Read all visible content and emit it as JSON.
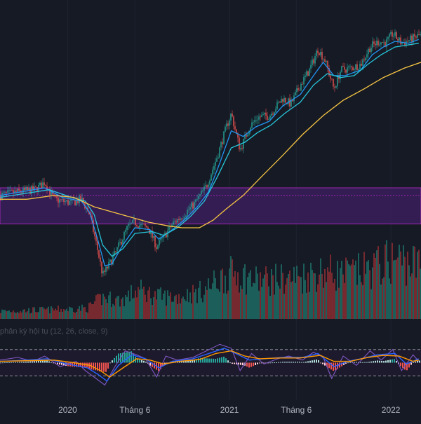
{
  "colors": {
    "background": "#161a25",
    "grid": "#1f2330",
    "candle_up": "#26a69a",
    "candle_down": "#ef5350",
    "ema_fast": "#2196f3",
    "ema_mid": "#26c6da",
    "sma_long": "#f5c443",
    "zone_fill": "#3a1f5c",
    "zone_border": "#9c27b0",
    "volume_up": "#1f6f67",
    "volume_down": "#8e2f33",
    "macd_line": "#2962ff",
    "signal_line": "#ff9800",
    "rsi_line": "#7e57c2",
    "hist_up_strong": "#26a69a",
    "hist_up_weak": "#b2dfdb",
    "hist_down_strong": "#ef5350",
    "hist_down_weak": "#ffcdd2",
    "axis_text": "#b2b5be",
    "indicator_text": "#4a4e59",
    "dashed_line": "#8a8d96"
  },
  "indicator_label": "phân kỳ hội tụ (12, 26, close, 9)",
  "chart_data": {
    "type": "candlestick",
    "x_axis": {
      "tick_labels": [
        "2020",
        "Tháng 6",
        "2021",
        "Tháng 6",
        "2022"
      ],
      "tick_dates": [
        "2020-01-01",
        "2020-06-01",
        "2021-01-01",
        "2021-06-01",
        "2022-01-01"
      ]
    },
    "x_range": [
      "2019-08-01",
      "2022-03-10"
    ],
    "price_range": [
      0.2,
      1.6
    ],
    "series": [
      {
        "name": "price",
        "points": [
          [
            "2019-08-01",
            0.72
          ],
          [
            "2019-09-15",
            0.74
          ],
          [
            "2019-10-20",
            0.75
          ],
          [
            "2019-11-10",
            0.79
          ],
          [
            "2019-12-01",
            0.7
          ],
          [
            "2019-12-20",
            0.69
          ],
          [
            "2020-01-10",
            0.68
          ],
          [
            "2020-02-01",
            0.7
          ],
          [
            "2020-02-20",
            0.62
          ],
          [
            "2020-03-10",
            0.42
          ],
          [
            "2020-03-20",
            0.3
          ],
          [
            "2020-04-05",
            0.36
          ],
          [
            "2020-04-25",
            0.45
          ],
          [
            "2020-05-15",
            0.55
          ],
          [
            "2020-06-01",
            0.58
          ],
          [
            "2020-06-15",
            0.56
          ],
          [
            "2020-07-01",
            0.55
          ],
          [
            "2020-07-20",
            0.45
          ],
          [
            "2020-08-05",
            0.5
          ],
          [
            "2020-08-25",
            0.57
          ],
          [
            "2020-09-20",
            0.62
          ],
          [
            "2020-10-15",
            0.68
          ],
          [
            "2020-11-10",
            0.77
          ],
          [
            "2020-12-05",
            0.93
          ],
          [
            "2020-12-25",
            1.08
          ],
          [
            "2021-01-05",
            1.15
          ],
          [
            "2021-01-25",
            0.96
          ],
          [
            "2021-02-15",
            1.08
          ],
          [
            "2021-03-05",
            1.13
          ],
          [
            "2021-04-01",
            1.14
          ],
          [
            "2021-05-01",
            1.23
          ],
          [
            "2021-05-20",
            1.2
          ],
          [
            "2021-06-10",
            1.3
          ],
          [
            "2021-07-01",
            1.38
          ],
          [
            "2021-07-20",
            1.49
          ],
          [
            "2021-08-05",
            1.43
          ],
          [
            "2021-08-25",
            1.28
          ],
          [
            "2021-09-10",
            1.38
          ],
          [
            "2021-10-05",
            1.39
          ],
          [
            "2021-10-25",
            1.41
          ],
          [
            "2021-11-15",
            1.5
          ],
          [
            "2021-12-05",
            1.53
          ],
          [
            "2021-12-20",
            1.52
          ],
          [
            "2022-01-05",
            1.57
          ],
          [
            "2022-01-25",
            1.52
          ],
          [
            "2022-02-15",
            1.54
          ],
          [
            "2022-03-05",
            1.56
          ]
        ]
      },
      {
        "name": "ema_fast",
        "points": [
          [
            "2019-08-01",
            0.72
          ],
          [
            "2019-11-10",
            0.76
          ],
          [
            "2019-12-20",
            0.71
          ],
          [
            "2020-02-01",
            0.69
          ],
          [
            "2020-02-20",
            0.63
          ],
          [
            "2020-03-10",
            0.48
          ],
          [
            "2020-03-25",
            0.35
          ],
          [
            "2020-04-10",
            0.36
          ],
          [
            "2020-05-05",
            0.46
          ],
          [
            "2020-06-01",
            0.55
          ],
          [
            "2020-07-05",
            0.54
          ],
          [
            "2020-07-25",
            0.49
          ],
          [
            "2020-08-25",
            0.54
          ],
          [
            "2020-09-25",
            0.6
          ],
          [
            "2020-10-20",
            0.66
          ],
          [
            "2020-11-15",
            0.74
          ],
          [
            "2020-12-10",
            0.89
          ],
          [
            "2021-01-05",
            1.06
          ],
          [
            "2021-02-01",
            1.03
          ],
          [
            "2021-03-01",
            1.08
          ],
          [
            "2021-04-01",
            1.11
          ],
          [
            "2021-05-01",
            1.19
          ],
          [
            "2021-06-10",
            1.25
          ],
          [
            "2021-07-10",
            1.35
          ],
          [
            "2021-08-01",
            1.42
          ],
          [
            "2021-08-25",
            1.35
          ],
          [
            "2021-09-20",
            1.35
          ],
          [
            "2021-10-25",
            1.38
          ],
          [
            "2021-11-20",
            1.46
          ],
          [
            "2021-12-15",
            1.5
          ],
          [
            "2022-01-10",
            1.53
          ],
          [
            "2022-02-10",
            1.52
          ],
          [
            "2022-03-05",
            1.54
          ]
        ]
      },
      {
        "name": "ema_mid",
        "points": [
          [
            "2019-08-01",
            0.71
          ],
          [
            "2019-11-20",
            0.75
          ],
          [
            "2020-01-10",
            0.71
          ],
          [
            "2020-02-10",
            0.69
          ],
          [
            "2020-03-01",
            0.62
          ],
          [
            "2020-03-20",
            0.46
          ],
          [
            "2020-04-10",
            0.4
          ],
          [
            "2020-05-05",
            0.44
          ],
          [
            "2020-06-01",
            0.52
          ],
          [
            "2020-07-10",
            0.53
          ],
          [
            "2020-08-05",
            0.51
          ],
          [
            "2020-09-05",
            0.55
          ],
          [
            "2020-10-05",
            0.61
          ],
          [
            "2020-11-05",
            0.69
          ],
          [
            "2020-12-05",
            0.82
          ],
          [
            "2021-01-05",
            0.97
          ],
          [
            "2021-02-05",
            1.0
          ],
          [
            "2021-03-05",
            1.05
          ],
          [
            "2021-04-05",
            1.09
          ],
          [
            "2021-05-05",
            1.15
          ],
          [
            "2021-06-10",
            1.21
          ],
          [
            "2021-07-10",
            1.3
          ],
          [
            "2021-08-10",
            1.36
          ],
          [
            "2021-09-10",
            1.34
          ],
          [
            "2021-10-10",
            1.35
          ],
          [
            "2021-11-10",
            1.41
          ],
          [
            "2021-12-10",
            1.46
          ],
          [
            "2022-01-10",
            1.5
          ],
          [
            "2022-03-05",
            1.52
          ]
        ]
      },
      {
        "name": "sma_long",
        "points": [
          [
            "2019-08-01",
            0.7
          ],
          [
            "2019-10-01",
            0.7
          ],
          [
            "2019-12-01",
            0.72
          ],
          [
            "2020-01-15",
            0.71
          ],
          [
            "2020-03-01",
            0.66
          ],
          [
            "2020-05-01",
            0.62
          ],
          [
            "2020-07-01",
            0.58
          ],
          [
            "2020-08-15",
            0.56
          ],
          [
            "2020-09-15",
            0.55
          ],
          [
            "2020-10-25",
            0.55
          ],
          [
            "2020-11-25",
            0.59
          ],
          [
            "2020-12-25",
            0.65
          ],
          [
            "2021-02-01",
            0.72
          ],
          [
            "2021-03-15",
            0.82
          ],
          [
            "2021-05-01",
            0.93
          ],
          [
            "2021-06-15",
            1.04
          ],
          [
            "2021-08-01",
            1.14
          ],
          [
            "2021-09-15",
            1.22
          ],
          [
            "2021-11-01",
            1.28
          ],
          [
            "2021-12-15",
            1.34
          ],
          [
            "2022-02-01",
            1.39
          ],
          [
            "2022-03-10",
            1.42
          ]
        ]
      }
    ],
    "zone": {
      "low": 0.57,
      "high": 0.76,
      "mid": 0.72
    },
    "volume": {
      "range": [
        0,
        100
      ],
      "points": [
        [
          "2019-08-01",
          10
        ],
        [
          "2019-12-01",
          12
        ],
        [
          "2020-02-15",
          14
        ],
        [
          "2020-03-20",
          28
        ],
        [
          "2020-05-01",
          24
        ],
        [
          "2020-06-10",
          38
        ],
        [
          "2020-07-15",
          30
        ],
        [
          "2020-09-01",
          28
        ],
        [
          "2020-11-01",
          36
        ],
        [
          "2020-12-20",
          55
        ],
        [
          "2021-01-15",
          60
        ],
        [
          "2021-03-01",
          50
        ],
        [
          "2021-05-01",
          52
        ],
        [
          "2021-06-15",
          55
        ],
        [
          "2021-08-01",
          62
        ],
        [
          "2021-09-15",
          58
        ],
        [
          "2021-11-01",
          62
        ],
        [
          "2021-12-15",
          72
        ],
        [
          "2022-01-15",
          78
        ],
        [
          "2022-03-05",
          70
        ]
      ]
    },
    "macd": {
      "range": [
        -1,
        1
      ],
      "levels": [
        0.5,
        -0.5
      ],
      "series": [
        {
          "name": "rsi",
          "points": [
            [
              "2019-08-01",
              0.1
            ],
            [
              "2019-09-10",
              0.2
            ],
            [
              "2019-10-15",
              0.05
            ],
            [
              "2019-11-10",
              0.25
            ],
            [
              "2019-12-15",
              -0.15
            ],
            [
              "2020-01-20",
              0.05
            ],
            [
              "2020-02-10",
              -0.3
            ],
            [
              "2020-03-05",
              -0.6
            ],
            [
              "2020-03-25",
              -0.85
            ],
            [
              "2020-04-15",
              -0.2
            ],
            [
              "2020-05-10",
              0.45
            ],
            [
              "2020-06-05",
              0.3
            ],
            [
              "2020-06-25",
              0.15
            ],
            [
              "2020-07-20",
              -0.55
            ],
            [
              "2020-08-10",
              0.25
            ],
            [
              "2020-09-05",
              0.1
            ],
            [
              "2020-10-10",
              0.2
            ],
            [
              "2020-11-10",
              0.45
            ],
            [
              "2020-12-10",
              0.7
            ],
            [
              "2021-01-05",
              0.55
            ],
            [
              "2021-01-25",
              -0.3
            ],
            [
              "2021-02-20",
              0.35
            ],
            [
              "2021-03-20",
              -0.05
            ],
            [
              "2021-04-20",
              0.15
            ],
            [
              "2021-05-15",
              0.25
            ],
            [
              "2021-06-15",
              0.1
            ],
            [
              "2021-07-10",
              0.4
            ],
            [
              "2021-08-01",
              0.2
            ],
            [
              "2021-08-20",
              -0.6
            ],
            [
              "2021-09-15",
              0.25
            ],
            [
              "2021-10-15",
              -0.1
            ],
            [
              "2021-11-15",
              0.45
            ],
            [
              "2021-12-10",
              0.1
            ],
            [
              "2022-01-05",
              0.5
            ],
            [
              "2022-01-25",
              -0.3
            ],
            [
              "2022-02-20",
              0.3
            ],
            [
              "2022-03-05",
              0.05
            ]
          ]
        },
        {
          "name": "macd",
          "points": [
            [
              "2019-08-01",
              0.05
            ],
            [
              "2019-10-01",
              0.1
            ],
            [
              "2019-11-15",
              0.15
            ],
            [
              "2020-01-01",
              -0.05
            ],
            [
              "2020-02-15",
              -0.2
            ],
            [
              "2020-03-10",
              -0.45
            ],
            [
              "2020-03-30",
              -0.7
            ],
            [
              "2020-04-25",
              -0.1
            ],
            [
              "2020-05-25",
              0.3
            ],
            [
              "2020-06-25",
              0.15
            ],
            [
              "2020-07-25",
              -0.2
            ],
            [
              "2020-08-25",
              0.05
            ],
            [
              "2020-10-10",
              0.15
            ],
            [
              "2020-11-15",
              0.35
            ],
            [
              "2020-12-20",
              0.55
            ],
            [
              "2021-01-15",
              0.35
            ],
            [
              "2021-02-15",
              0.1
            ],
            [
              "2021-03-20",
              0.15
            ],
            [
              "2021-05-01",
              0.2
            ],
            [
              "2021-06-15",
              0.2
            ],
            [
              "2021-07-20",
              0.35
            ],
            [
              "2021-08-25",
              -0.15
            ],
            [
              "2021-09-25",
              0.05
            ],
            [
              "2021-10-25",
              0.15
            ],
            [
              "2021-12-01",
              0.3
            ],
            [
              "2022-01-10",
              0.35
            ],
            [
              "2022-02-05",
              -0.05
            ],
            [
              "2022-03-05",
              0.15
            ]
          ]
        },
        {
          "name": "signal",
          "points": [
            [
              "2019-08-01",
              0.05
            ],
            [
              "2019-10-15",
              0.08
            ],
            [
              "2019-12-01",
              0.1
            ],
            [
              "2020-01-15",
              0.0
            ],
            [
              "2020-02-20",
              -0.1
            ],
            [
              "2020-03-15",
              -0.3
            ],
            [
              "2020-04-05",
              -0.55
            ],
            [
              "2020-05-05",
              -0.2
            ],
            [
              "2020-06-05",
              0.15
            ],
            [
              "2020-07-05",
              0.1
            ],
            [
              "2020-08-05",
              -0.05
            ],
            [
              "2020-09-10",
              0.05
            ],
            [
              "2020-10-25",
              0.12
            ],
            [
              "2020-12-01",
              0.35
            ],
            [
              "2021-01-05",
              0.45
            ],
            [
              "2021-02-05",
              0.25
            ],
            [
              "2021-03-10",
              0.15
            ],
            [
              "2021-04-25",
              0.18
            ],
            [
              "2021-06-10",
              0.18
            ],
            [
              "2021-07-25",
              0.28
            ],
            [
              "2021-08-25",
              0.05
            ],
            [
              "2021-10-01",
              0.05
            ],
            [
              "2021-11-10",
              0.2
            ],
            [
              "2021-12-15",
              0.28
            ],
            [
              "2022-01-20",
              0.25
            ],
            [
              "2022-02-20",
              0.05
            ],
            [
              "2022-03-05",
              0.1
            ]
          ]
        }
      ]
    }
  }
}
